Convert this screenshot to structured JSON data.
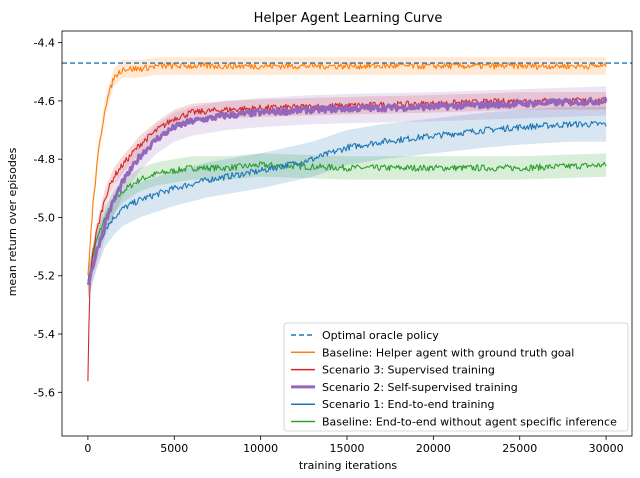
{
  "chart_data": {
    "type": "line",
    "title": "Helper Agent Learning Curve",
    "xlabel": "training iterations",
    "ylabel": "mean return over episodes",
    "xlim": [
      -1500,
      31500
    ],
    "ylim": [
      -5.75,
      -4.36
    ],
    "xticks": [
      0,
      5000,
      10000,
      15000,
      20000,
      25000,
      30000
    ],
    "xtick_labels": [
      "0",
      "5000",
      "10000",
      "15000",
      "20000",
      "25000",
      "30000"
    ],
    "yticks": [
      -4.4,
      -4.6,
      -4.8,
      -5.0,
      -5.2,
      -5.4,
      -5.6
    ],
    "ytick_labels": [
      "-4.4",
      "-4.6",
      "-4.8",
      "-5.0",
      "-5.2",
      "-5.4",
      "-5.6"
    ],
    "grid": false,
    "legend_position": "lower-right",
    "series": [
      {
        "name": "Optimal oracle policy",
        "color": "#1f77b4",
        "style": "dashed",
        "hline": -4.47
      },
      {
        "name": "Baseline: Helper agent with ground truth goal",
        "color": "#ff7f0e",
        "style": "solid",
        "band": 0.03,
        "x": [
          0,
          300,
          600,
          1000,
          1500,
          2000,
          3000,
          4000,
          6000,
          10000,
          15000,
          20000,
          25000,
          30000
        ],
        "y": [
          -5.2,
          -4.95,
          -4.78,
          -4.62,
          -4.52,
          -4.49,
          -4.49,
          -4.48,
          -4.48,
          -4.48,
          -4.48,
          -4.48,
          -4.48,
          -4.48
        ]
      },
      {
        "name": "Scenario 3:  Supervised training",
        "color": "#d62728",
        "style": "solid",
        "band": 0.03,
        "x": [
          0,
          100,
          200,
          500,
          1000,
          1500,
          2000,
          3000,
          4000,
          5000,
          6000,
          8000,
          10000,
          13000,
          16000,
          20000,
          25000,
          30000
        ],
        "y": [
          -5.57,
          -5.25,
          -5.15,
          -5.05,
          -4.93,
          -4.86,
          -4.82,
          -4.75,
          -4.7,
          -4.66,
          -4.64,
          -4.63,
          -4.625,
          -4.62,
          -4.615,
          -4.61,
          -4.6,
          -4.6
        ]
      },
      {
        "name": "Scenario 2:  Self-supervised training",
        "color": "#9467bd",
        "style": "solid",
        "width": 3,
        "band": 0.05,
        "x": [
          0,
          500,
          1000,
          1500,
          2000,
          3000,
          4000,
          5000,
          6000,
          8000,
          10000,
          13000,
          16000,
          20000,
          25000,
          30000
        ],
        "y": [
          -5.23,
          -5.12,
          -5.02,
          -4.94,
          -4.88,
          -4.79,
          -4.73,
          -4.69,
          -4.67,
          -4.65,
          -4.64,
          -4.63,
          -4.625,
          -4.62,
          -4.61,
          -4.6
        ]
      },
      {
        "name": "Scenario 1:  End-to-end training",
        "color": "#1f77b4",
        "style": "solid",
        "band": 0.06,
        "x": [
          0,
          500,
          1000,
          1500,
          2000,
          3000,
          4000,
          5000,
          7000,
          10000,
          13000,
          15000,
          17000,
          20000,
          23000,
          25000,
          28000,
          30000
        ],
        "y": [
          -5.22,
          -5.12,
          -5.04,
          -5.0,
          -4.97,
          -4.94,
          -4.92,
          -4.9,
          -4.87,
          -4.84,
          -4.8,
          -4.76,
          -4.74,
          -4.72,
          -4.7,
          -4.69,
          -4.68,
          -4.68
        ]
      },
      {
        "name": "Baseline: End-to-end without agent specific inference",
        "color": "#2ca02c",
        "style": "solid",
        "band": 0.04,
        "x": [
          0,
          500,
          1000,
          1500,
          2000,
          3000,
          4000,
          5000,
          6000,
          8000,
          10000,
          15000,
          20000,
          25000,
          30000
        ],
        "y": [
          -5.22,
          -5.08,
          -5.0,
          -4.95,
          -4.91,
          -4.87,
          -4.85,
          -4.84,
          -4.83,
          -4.83,
          -4.82,
          -4.83,
          -4.83,
          -4.83,
          -4.82
        ]
      }
    ]
  }
}
